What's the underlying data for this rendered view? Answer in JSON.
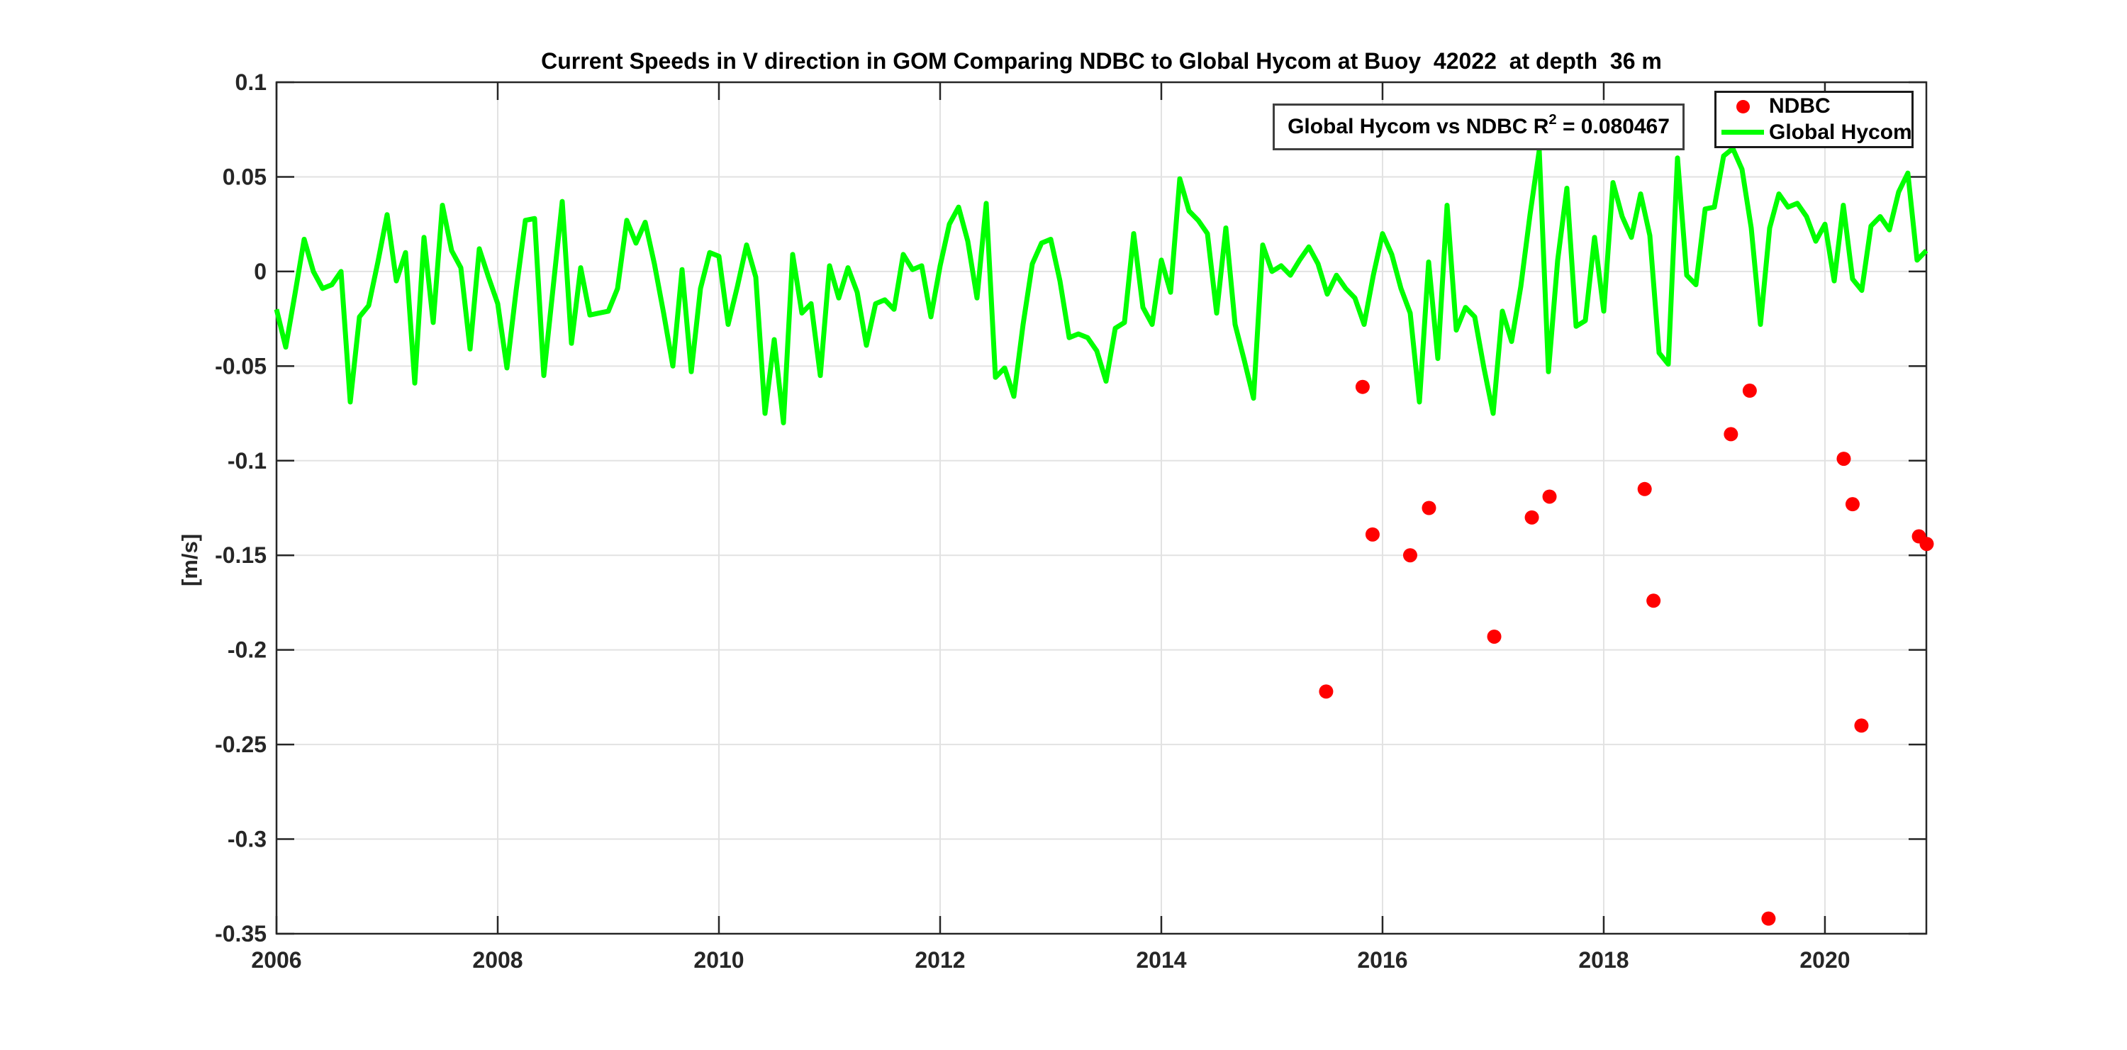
{
  "annotation": {
    "prefix": "Global Hycom vs NDBC R",
    "sup": "2",
    "suffix": " = 0.080467"
  },
  "legend": {
    "items": [
      {
        "label": "NDBC",
        "marker": "dot",
        "color": "#ff0000"
      },
      {
        "label": "Global Hycom",
        "marker": "line",
        "color": "#00ff00"
      }
    ]
  },
  "chart_data": {
    "type": "line",
    "title": "Current Speeds in V direction in GOM Comparing NDBC to Global Hycom at Buoy  42022  at depth  36 m",
    "xlabel": "",
    "ylabel": "[m/s]",
    "xlim": [
      2006,
      2020.917
    ],
    "ylim": [
      -0.35,
      0.1
    ],
    "grid": true,
    "legend_position": "top-right",
    "axis_color": "#262626",
    "grid_color": "#e2e2e2",
    "background": "#ffffff",
    "xtick_values": [
      2006,
      2008,
      2010,
      2012,
      2014,
      2016,
      2018,
      2020
    ],
    "xtick_labels": [
      "2006",
      "2008",
      "2010",
      "2012",
      "2014",
      "2016",
      "2018",
      "2020"
    ],
    "ytick_values": [
      0.1,
      0.05,
      0,
      -0.05,
      -0.1,
      -0.15,
      -0.2,
      -0.25,
      -0.3,
      -0.35
    ],
    "ytick_labels": [
      "0.1",
      "0.05",
      "0",
      "-0.05",
      "-0.1",
      "-0.15",
      "-0.2",
      "-0.25",
      "-0.3",
      "-0.35"
    ],
    "annotation": {
      "text": "Global Hycom vs NDBC R^2 = 0.080467",
      "r_squared": 0.080467
    },
    "series": [
      {
        "name": "Global Hycom",
        "type": "line",
        "color": "#00ff00",
        "line_width": 7,
        "x_start": 2006.0,
        "x_step_years": 0.0833333,
        "values": [
          -0.02,
          -0.04,
          -0.012,
          0.017,
          0.0,
          -0.009,
          -0.007,
          0.0,
          -0.069,
          -0.024,
          -0.018,
          0.005,
          0.03,
          -0.005,
          0.01,
          -0.059,
          0.018,
          -0.027,
          0.035,
          0.011,
          0.002,
          -0.041,
          0.012,
          -0.003,
          -0.017,
          -0.051,
          -0.01,
          0.027,
          0.028,
          -0.055,
          -0.009,
          0.037,
          -0.038,
          0.002,
          -0.023,
          -0.022,
          -0.021,
          -0.009,
          0.027,
          0.015,
          0.026,
          0.004,
          -0.022,
          -0.05,
          0.001,
          -0.053,
          -0.009,
          0.01,
          0.008,
          -0.028,
          -0.008,
          0.014,
          -0.003,
          -0.075,
          -0.036,
          -0.08,
          0.009,
          -0.022,
          -0.017,
          -0.055,
          0.003,
          -0.014,
          0.002,
          -0.011,
          -0.039,
          -0.017,
          -0.015,
          -0.02,
          0.009,
          0.001,
          0.003,
          -0.024,
          0.003,
          0.025,
          0.034,
          0.016,
          -0.014,
          0.036,
          -0.056,
          -0.051,
          -0.066,
          -0.028,
          0.004,
          0.015,
          0.017,
          -0.005,
          -0.035,
          -0.033,
          -0.035,
          -0.042,
          -0.058,
          -0.03,
          -0.027,
          0.02,
          -0.019,
          -0.028,
          0.006,
          -0.011,
          0.049,
          0.032,
          0.027,
          0.02,
          -0.022,
          0.023,
          -0.028,
          -0.047,
          -0.067,
          0.014,
          0.0,
          0.003,
          -0.002,
          0.006,
          0.013,
          0.004,
          -0.012,
          -0.002,
          -0.009,
          -0.014,
          -0.028,
          -0.002,
          0.02,
          0.009,
          -0.009,
          -0.022,
          -0.069,
          0.005,
          -0.046,
          0.035,
          -0.031,
          -0.019,
          -0.024,
          -0.051,
          -0.075,
          -0.021,
          -0.037,
          -0.008,
          0.03,
          0.064,
          -0.053,
          0.006,
          0.044,
          -0.029,
          -0.026,
          0.018,
          -0.021,
          0.047,
          0.029,
          0.018,
          0.041,
          0.019,
          -0.043,
          -0.049,
          0.06,
          -0.002,
          -0.007,
          0.033,
          0.034,
          0.061,
          0.065,
          0.054,
          0.023,
          -0.028,
          0.023,
          0.041,
          0.034,
          0.036,
          0.029,
          0.016,
          0.025,
          -0.005,
          0.035,
          -0.004,
          -0.01,
          0.024,
          0.029,
          0.022,
          0.042,
          0.052,
          0.006,
          0.011
        ]
      },
      {
        "name": "NDBC",
        "type": "scatter",
        "color": "#ff0000",
        "marker_radius": 10,
        "points": [
          [
            2015.49,
            -0.222
          ],
          [
            2015.82,
            -0.061
          ],
          [
            2015.91,
            -0.139
          ],
          [
            2016.25,
            -0.15
          ],
          [
            2016.42,
            -0.125
          ],
          [
            2017.01,
            -0.193
          ],
          [
            2017.35,
            -0.13
          ],
          [
            2017.51,
            -0.119
          ],
          [
            2018.37,
            -0.115
          ],
          [
            2018.45,
            -0.174
          ],
          [
            2019.15,
            -0.086
          ],
          [
            2019.32,
            -0.063
          ],
          [
            2019.49,
            -0.342
          ],
          [
            2020.17,
            -0.099
          ],
          [
            2020.25,
            -0.123
          ],
          [
            2020.33,
            -0.24
          ],
          [
            2020.85,
            -0.14
          ],
          [
            2020.92,
            -0.144
          ]
        ]
      }
    ]
  }
}
